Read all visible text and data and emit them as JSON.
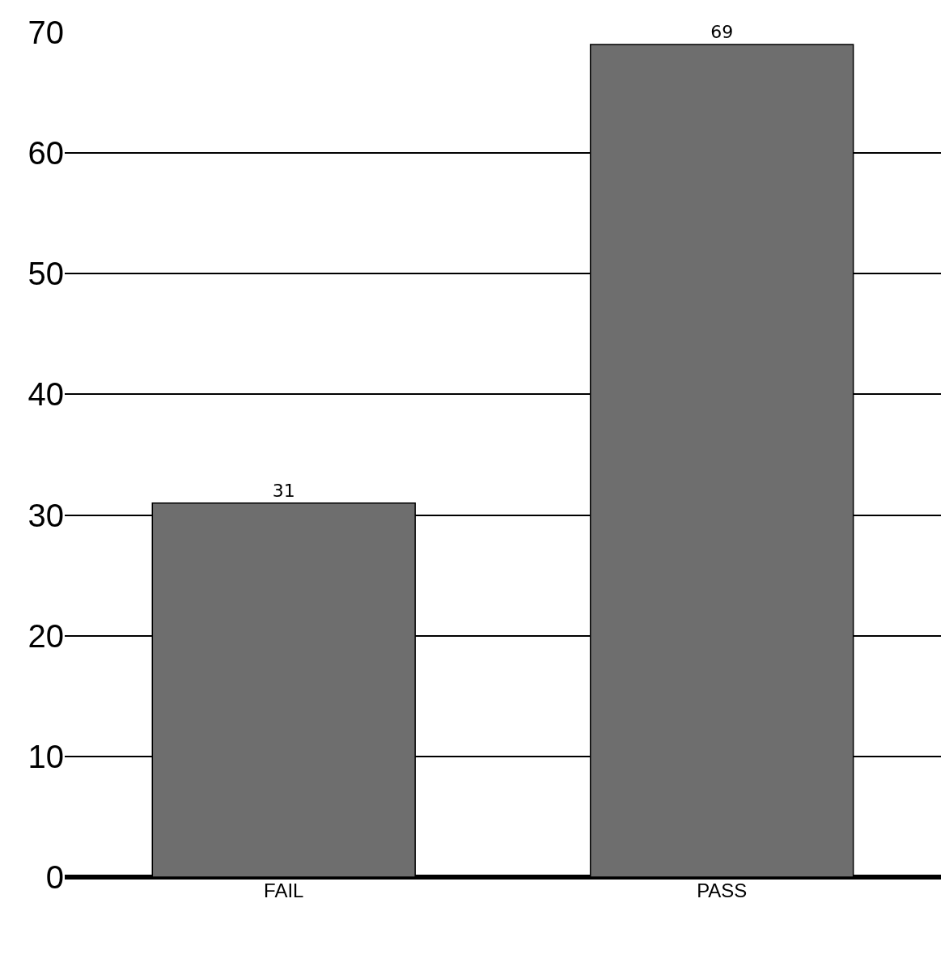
{
  "chart_data": {
    "type": "bar",
    "categories": [
      "FAIL",
      "PASS"
    ],
    "values": [
      31,
      69
    ],
    "color": "#6e6e6e",
    "data_labels": true,
    "ylim": [
      0,
      70
    ],
    "yticks": [
      0,
      10,
      20,
      30,
      40,
      50,
      60,
      70
    ],
    "grid": "y",
    "legend": false
  }
}
